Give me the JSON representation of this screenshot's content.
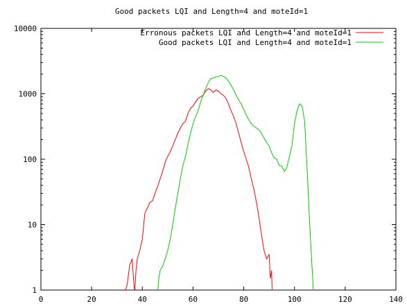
{
  "chart_data": {
    "type": "line",
    "title": "Good packets LQI and Length=4 and moteId=1",
    "xlabel": "",
    "ylabel": "",
    "xlim": [
      0,
      140
    ],
    "ylim": [
      1,
      10000
    ],
    "yscale": "log",
    "grid": false,
    "legend": "top-right",
    "xticks": [
      "0",
      "20",
      "40",
      "60",
      "80",
      "100",
      "120",
      "140"
    ],
    "yticks": [
      "1",
      "10",
      "100",
      "1000",
      "10000"
    ],
    "series": [
      {
        "name": "Erronous packets LQI and Length=4 and moteId=1",
        "color": "#ff0000",
        "points": [
          [
            33,
            0.9
          ],
          [
            34,
            1.2
          ],
          [
            35,
            2.4
          ],
          [
            36,
            3.0
          ],
          [
            36.5,
            1.5
          ],
          [
            37,
            0.9
          ],
          [
            37.5,
            2.0
          ],
          [
            38,
            3.0
          ],
          [
            39,
            4.0
          ],
          [
            40,
            6.0
          ],
          [
            41,
            15
          ],
          [
            42,
            18
          ],
          [
            43,
            22
          ],
          [
            44,
            23
          ],
          [
            45,
            30
          ],
          [
            46,
            38
          ],
          [
            47,
            50
          ],
          [
            48,
            65
          ],
          [
            49,
            90
          ],
          [
            50,
            110
          ],
          [
            51,
            130
          ],
          [
            52,
            160
          ],
          [
            53,
            200
          ],
          [
            54,
            250
          ],
          [
            55,
            300
          ],
          [
            56,
            350
          ],
          [
            57,
            380
          ],
          [
            58,
            500
          ],
          [
            59,
            600
          ],
          [
            60,
            650
          ],
          [
            61,
            750
          ],
          [
            62,
            850
          ],
          [
            63,
            900
          ],
          [
            64,
            950
          ],
          [
            65,
            1100
          ],
          [
            66,
            1200
          ],
          [
            67,
            1150
          ],
          [
            68,
            1050
          ],
          [
            69,
            1150
          ],
          [
            70,
            1100
          ],
          [
            71,
            1000
          ],
          [
            72,
            950
          ],
          [
            73,
            850
          ],
          [
            74,
            700
          ],
          [
            75,
            550
          ],
          [
            76,
            450
          ],
          [
            77,
            350
          ],
          [
            78,
            250
          ],
          [
            79,
            180
          ],
          [
            80,
            130
          ],
          [
            81,
            100
          ],
          [
            82,
            75
          ],
          [
            83,
            50
          ],
          [
            84,
            35
          ],
          [
            85,
            22
          ],
          [
            86,
            13
          ],
          [
            87,
            7
          ],
          [
            88,
            4
          ],
          [
            89,
            3
          ],
          [
            90,
            3.5
          ],
          [
            90.5,
            1.5
          ],
          [
            91,
            2.0
          ],
          [
            91.2,
            0.9
          ]
        ]
      },
      {
        "name": "Good packets LQI and Length=4 and moteId=1",
        "color": "#00cc00",
        "points": [
          [
            46,
            0.9
          ],
          [
            46.5,
            1.5
          ],
          [
            47,
            2.0
          ],
          [
            48,
            2.3
          ],
          [
            49,
            3.0
          ],
          [
            50,
            4.0
          ],
          [
            51,
            6.0
          ],
          [
            52,
            10
          ],
          [
            53,
            18
          ],
          [
            54,
            30
          ],
          [
            55,
            50
          ],
          [
            56,
            80
          ],
          [
            57,
            110
          ],
          [
            58,
            170
          ],
          [
            59,
            250
          ],
          [
            60,
            350
          ],
          [
            61,
            450
          ],
          [
            62,
            550
          ],
          [
            63,
            750
          ],
          [
            64,
            950
          ],
          [
            65,
            1200
          ],
          [
            66,
            1500
          ],
          [
            67,
            1700
          ],
          [
            68,
            1750
          ],
          [
            69,
            1800
          ],
          [
            70,
            1850
          ],
          [
            71,
            1900
          ],
          [
            72,
            1850
          ],
          [
            73,
            1750
          ],
          [
            74,
            1550
          ],
          [
            75,
            1350
          ],
          [
            76,
            1150
          ],
          [
            77,
            950
          ],
          [
            78,
            800
          ],
          [
            79,
            700
          ],
          [
            80,
            580
          ],
          [
            81,
            470
          ],
          [
            82,
            400
          ],
          [
            83,
            350
          ],
          [
            84,
            320
          ],
          [
            85,
            300
          ],
          [
            86,
            280
          ],
          [
            87,
            250
          ],
          [
            88,
            210
          ],
          [
            89,
            180
          ],
          [
            90,
            160
          ],
          [
            91,
            125
          ],
          [
            92,
            105
          ],
          [
            93,
            100
          ],
          [
            94,
            80
          ],
          [
            95,
            78
          ],
          [
            96,
            65
          ],
          [
            97,
            75
          ],
          [
            98,
            110
          ],
          [
            99,
            160
          ],
          [
            100,
            350
          ],
          [
            101,
            550
          ],
          [
            102,
            700
          ],
          [
            103,
            650
          ],
          [
            104,
            380
          ],
          [
            105,
            70
          ],
          [
            106,
            10
          ],
          [
            107,
            2.0
          ],
          [
            107.5,
            0.9
          ]
        ]
      }
    ]
  }
}
